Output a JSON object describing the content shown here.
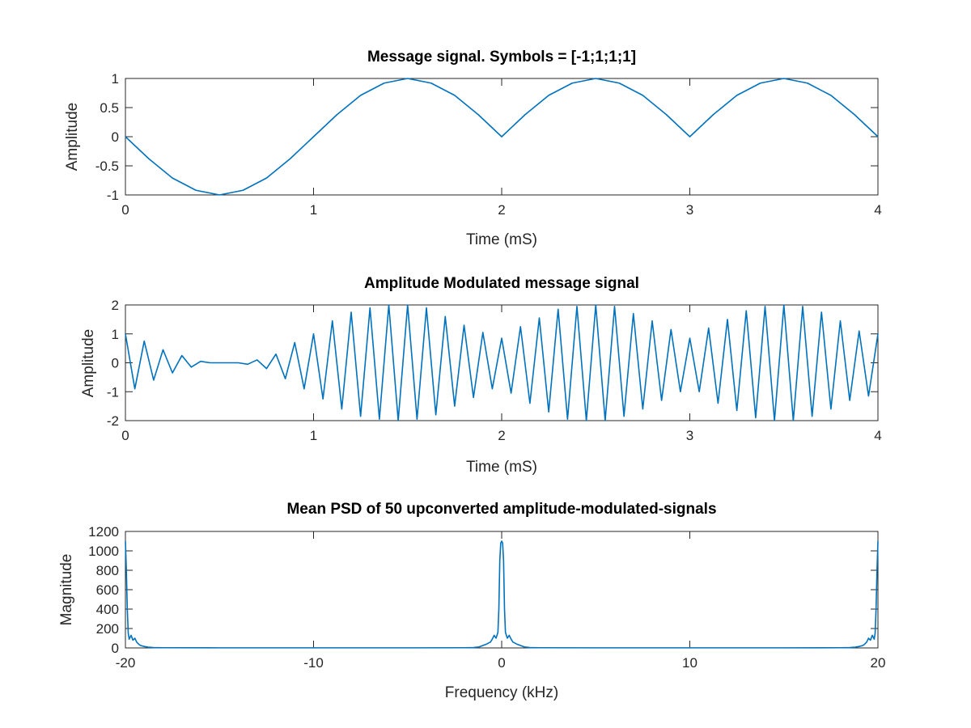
{
  "colors": {
    "line": "#0072bd",
    "axes": "#262626",
    "background": "#ffffff"
  },
  "chart_data": [
    {
      "type": "line",
      "title": "Message signal. Symbols = [-1;1;1;1]",
      "xlabel": "Time (mS)",
      "ylabel": "Amplitude",
      "xlim": [
        0,
        4
      ],
      "ylim": [
        -1,
        1
      ],
      "xticks": [
        0,
        1,
        2,
        3,
        4
      ],
      "xtick_labels": [
        "0",
        "1",
        "2",
        "3",
        "4"
      ],
      "yticks": [
        -1,
        -0.5,
        0,
        0.5,
        1
      ],
      "ytick_labels": [
        "-1",
        "-0.5",
        "0",
        "0.5",
        "1"
      ],
      "grid": false,
      "series": [
        {
          "x": [
            0,
            0.125,
            0.25,
            0.375,
            0.5,
            0.625,
            0.75,
            0.875,
            1,
            1.125,
            1.25,
            1.375,
            1.5,
            1.625,
            1.75,
            1.875,
            2,
            2.125,
            2.25,
            2.375,
            2.5,
            2.625,
            2.75,
            2.875,
            3,
            3.125,
            3.25,
            3.375,
            3.5,
            3.625,
            3.75,
            3.875,
            4
          ],
          "y": [
            0,
            -0.38,
            -0.71,
            -0.92,
            -1,
            -0.92,
            -0.71,
            -0.38,
            0,
            0.38,
            0.71,
            0.92,
            1,
            0.92,
            0.71,
            0.38,
            0,
            0.38,
            0.71,
            0.92,
            1,
            0.92,
            0.71,
            0.38,
            0,
            0.38,
            0.71,
            0.92,
            1,
            0.92,
            0.71,
            0.38,
            0
          ]
        }
      ]
    },
    {
      "type": "line",
      "title": "Amplitude Modulated message signal",
      "xlabel": "Time (mS)",
      "ylabel": "Amplitude",
      "xlim": [
        0,
        4
      ],
      "ylim": [
        -2,
        2
      ],
      "xticks": [
        0,
        1,
        2,
        3,
        4
      ],
      "xtick_labels": [
        "0",
        "1",
        "2",
        "3",
        "4"
      ],
      "yticks": [
        -2,
        -1,
        0,
        1,
        2
      ],
      "ytick_labels": [
        "-2",
        "-1",
        "0",
        "1",
        "2"
      ],
      "grid": false,
      "series": [
        {
          "x": [
            0,
            0.05,
            0.1,
            0.15,
            0.2,
            0.25,
            0.3,
            0.35,
            0.4,
            0.45,
            0.5,
            0.55,
            0.6,
            0.65,
            0.7,
            0.75,
            0.8,
            0.85,
            0.9,
            0.95,
            1,
            1.05,
            1.1,
            1.15,
            1.2,
            1.25,
            1.3,
            1.35,
            1.4,
            1.45,
            1.5,
            1.55,
            1.6,
            1.65,
            1.7,
            1.75,
            1.8,
            1.85,
            1.9,
            1.95,
            2,
            2.05,
            2.1,
            2.15,
            2.2,
            2.25,
            2.3,
            2.35,
            2.4,
            2.45,
            2.5,
            2.55,
            2.6,
            2.65,
            2.7,
            2.75,
            2.8,
            2.85,
            2.9,
            2.95,
            3,
            3.05,
            3.1,
            3.15,
            3.2,
            3.25,
            3.3,
            3.35,
            3.4,
            3.45,
            3.5,
            3.55,
            3.6,
            3.65,
            3.7,
            3.75,
            3.8,
            3.85,
            3.9,
            3.95,
            4
          ],
          "y": [
            1.0,
            -0.9,
            0.75,
            -0.6,
            0.45,
            -0.35,
            0.25,
            -0.15,
            0.05,
            0,
            0,
            0,
            0,
            -0.05,
            0.1,
            -0.2,
            0.3,
            -0.55,
            0.7,
            -0.9,
            1.0,
            -1.25,
            1.45,
            -1.6,
            1.75,
            -1.85,
            1.9,
            -1.95,
            2.0,
            -2.0,
            2.0,
            -1.95,
            1.9,
            -1.8,
            1.6,
            -1.5,
            1.3,
            -1.2,
            1.05,
            -0.9,
            0.85,
            -1.05,
            1.25,
            -1.4,
            1.55,
            -1.7,
            1.85,
            -1.95,
            1.95,
            -2.0,
            2.0,
            -2.0,
            1.95,
            -1.85,
            1.7,
            -1.6,
            1.45,
            -1.3,
            1.15,
            -1.0,
            0.85,
            -1.0,
            1.2,
            -1.4,
            1.5,
            -1.65,
            1.8,
            -1.9,
            1.95,
            -2.0,
            2.0,
            -2.0,
            1.95,
            -1.85,
            1.75,
            -1.6,
            1.45,
            -1.3,
            1.1,
            -1.15,
            1.0
          ]
        }
      ]
    },
    {
      "type": "line",
      "title": "Mean PSD of 50 upconverted amplitude-modulated-signals",
      "xlabel": "Frequency (kHz)",
      "ylabel": "Magnitude",
      "xlim": [
        -20,
        20
      ],
      "ylim": [
        0,
        1200
      ],
      "xticks": [
        -20,
        -10,
        0,
        10,
        20
      ],
      "xtick_labels": [
        "-20",
        "-10",
        "0",
        "10",
        "20"
      ],
      "yticks": [
        0,
        200,
        400,
        600,
        800,
        1000,
        1200
      ],
      "ytick_labels": [
        "0",
        "200",
        "400",
        "600",
        "800",
        "1000",
        "1200"
      ],
      "grid": false,
      "series": [
        {
          "x": [
            -20,
            -19.95,
            -19.9,
            -19.85,
            -19.8,
            -19.7,
            -19.6,
            -19.5,
            -19.4,
            -19.3,
            -19.2,
            -19.0,
            -18.8,
            -18.5,
            -18,
            -15,
            -10,
            -5,
            -2,
            -1.5,
            -1.2,
            -1.0,
            -0.8,
            -0.6,
            -0.5,
            -0.4,
            -0.3,
            -0.2,
            -0.15,
            -0.1,
            -0.05,
            0,
            0.05,
            0.1,
            0.15,
            0.2,
            0.3,
            0.4,
            0.5,
            0.6,
            0.8,
            1.0,
            1.2,
            1.5,
            2,
            5,
            10,
            15,
            18,
            18.5,
            18.8,
            19.0,
            19.2,
            19.3,
            19.4,
            19.5,
            19.6,
            19.7,
            19.8,
            19.85,
            19.9,
            19.95,
            20
          ],
          "y": [
            1100,
            800,
            400,
            150,
            90,
            130,
            80,
            100,
            60,
            40,
            25,
            15,
            8,
            4,
            2,
            1,
            1,
            1,
            2,
            4,
            10,
            25,
            40,
            60,
            90,
            130,
            100,
            160,
            400,
            900,
            1080,
            1100,
            1080,
            900,
            400,
            160,
            100,
            130,
            90,
            60,
            40,
            25,
            10,
            4,
            2,
            1,
            1,
            1,
            2,
            4,
            8,
            15,
            25,
            40,
            60,
            100,
            80,
            130,
            90,
            150,
            400,
            800,
            1100
          ]
        }
      ]
    }
  ]
}
